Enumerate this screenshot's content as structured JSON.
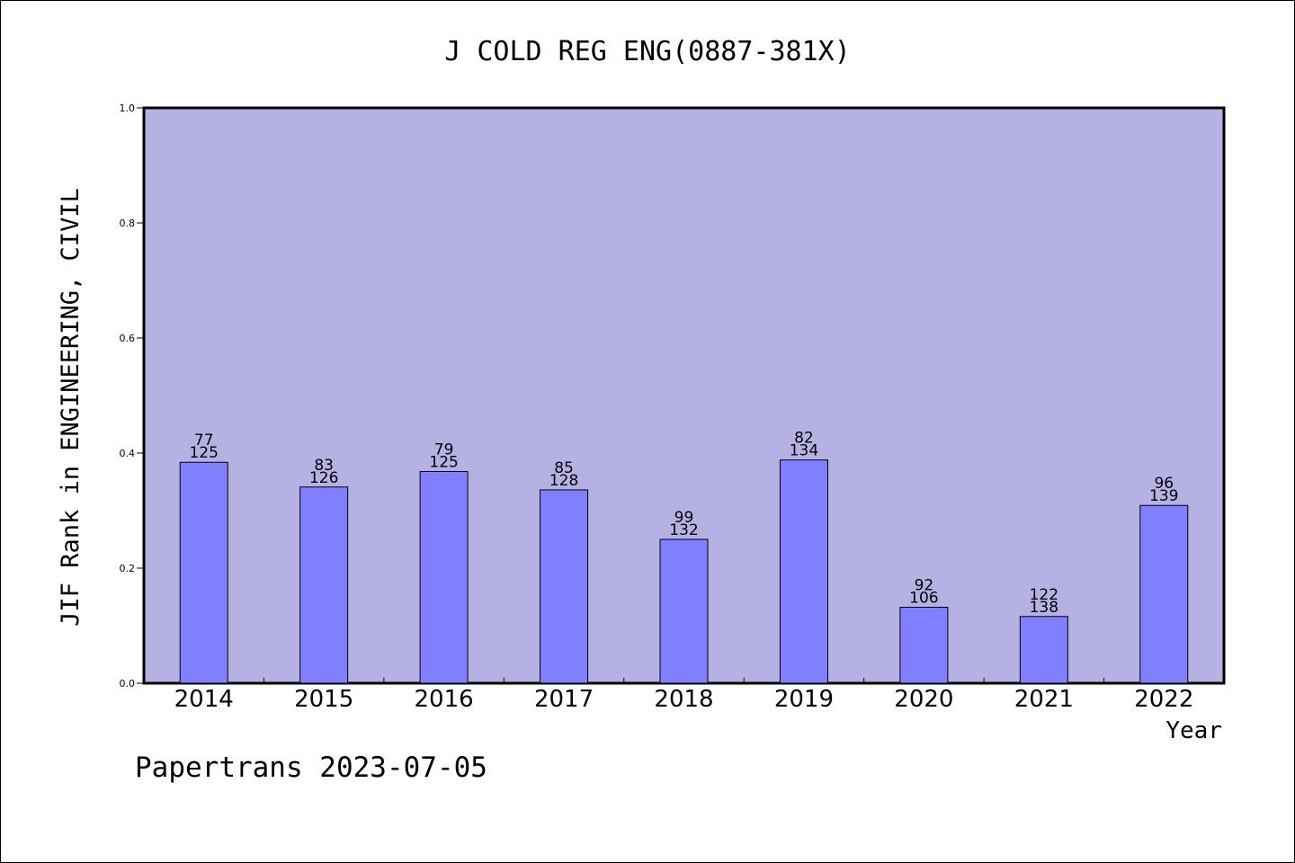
{
  "chart_data": {
    "type": "bar",
    "title": "J COLD REG ENG(0887-381X)",
    "ylabel": "JIF Rank in ENGINEERING, CIVIL",
    "xlabel": "Year",
    "footer": "Papertrans 2023-07-05",
    "ylim": [
      0,
      1.0
    ],
    "yticks": [
      "0.0",
      "0.2",
      "0.4",
      "0.6",
      "0.8",
      "1.0"
    ],
    "ytick_values": [
      0,
      0.2,
      0.4,
      0.6,
      0.8,
      1.0
    ],
    "categories": [
      "2014",
      "2015",
      "2016",
      "2017",
      "2018",
      "2019",
      "2020",
      "2021",
      "2022"
    ],
    "values": [
      0.384,
      0.341,
      0.368,
      0.336,
      0.25,
      0.388,
      0.132,
      0.116,
      0.309
    ],
    "rank": [
      "77",
      "83",
      "79",
      "85",
      "99",
      "82",
      "92",
      "122",
      "96"
    ],
    "total": [
      "125",
      "126",
      "125",
      "128",
      "132",
      "134",
      "106",
      "138",
      "139"
    ],
    "grid": false,
    "colors": {
      "plot_background": "#b6b1e3",
      "bar_fill": "#8080ff",
      "bar_stroke": "#000000"
    }
  }
}
